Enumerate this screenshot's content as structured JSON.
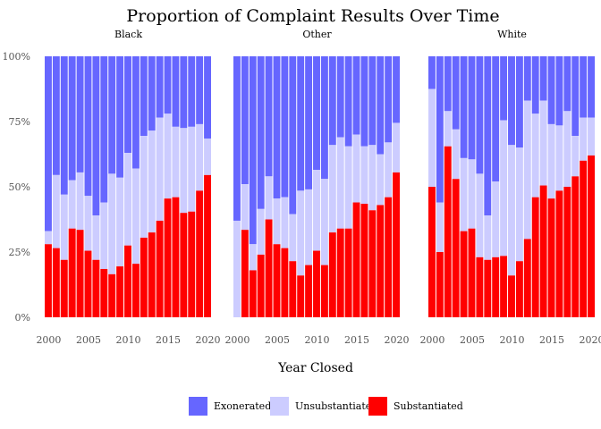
{
  "chart_data": {
    "type": "bar",
    "stacked": true,
    "normalized": true,
    "title": "Proportion of Complaint Results Over Time",
    "xlabel": "Year Closed",
    "ylabel": "",
    "ylim": [
      0,
      1
    ],
    "y_ticks": [
      "0%",
      "25%",
      "50%",
      "75%",
      "100%"
    ],
    "x_ticks": [
      2000,
      2005,
      2010,
      2015,
      2020
    ],
    "years": [
      2000,
      2001,
      2002,
      2003,
      2004,
      2005,
      2006,
      2007,
      2008,
      2009,
      2010,
      2011,
      2012,
      2013,
      2014,
      2015,
      2016,
      2017,
      2018,
      2019,
      2020
    ],
    "legend_position": "bottom",
    "series": [
      {
        "name": "Exonerated",
        "color": "#6666ff"
      },
      {
        "name": "Unsubstantiated",
        "color": "#ccccff"
      },
      {
        "name": "Substantiated",
        "color": "#ff0000"
      }
    ],
    "facets": [
      {
        "label": "Black",
        "substantiated": [
          0.28,
          0.265,
          0.22,
          0.34,
          0.335,
          0.255,
          0.22,
          0.185,
          0.165,
          0.195,
          0.275,
          0.205,
          0.305,
          0.325,
          0.37,
          0.455,
          0.46,
          0.4,
          0.405,
          0.485,
          0.545
        ],
        "cumulative": [
          0.33,
          0.545,
          0.47,
          0.525,
          0.555,
          0.465,
          0.39,
          0.44,
          0.55,
          0.535,
          0.63,
          0.57,
          0.695,
          0.715,
          0.765,
          0.78,
          0.73,
          0.725,
          0.73,
          0.74,
          0.685
        ]
      },
      {
        "label": "Other",
        "substantiated": [
          0.0,
          0.335,
          0.18,
          0.24,
          0.375,
          0.28,
          0.265,
          0.215,
          0.16,
          0.2,
          0.255,
          0.2,
          0.325,
          0.34,
          0.34,
          0.44,
          0.435,
          0.41,
          0.43,
          0.46,
          0.555
        ],
        "cumulative": [
          0.37,
          0.51,
          0.28,
          0.415,
          0.54,
          0.455,
          0.46,
          0.395,
          0.485,
          0.49,
          0.565,
          0.53,
          0.66,
          0.69,
          0.655,
          0.7,
          0.655,
          0.66,
          0.625,
          0.67,
          0.745
        ]
      },
      {
        "label": "White",
        "substantiated": [
          0.5,
          0.25,
          0.655,
          0.53,
          0.33,
          0.34,
          0.23,
          0.22,
          0.23,
          0.235,
          0.16,
          0.215,
          0.3,
          0.46,
          0.505,
          0.455,
          0.485,
          0.5,
          0.54,
          0.6,
          0.62
        ],
        "cumulative": [
          0.875,
          0.44,
          0.79,
          0.72,
          0.61,
          0.605,
          0.55,
          0.39,
          0.52,
          0.755,
          0.66,
          0.65,
          0.83,
          0.78,
          0.83,
          0.74,
          0.735,
          0.79,
          0.695,
          0.765,
          0.765
        ]
      }
    ]
  }
}
